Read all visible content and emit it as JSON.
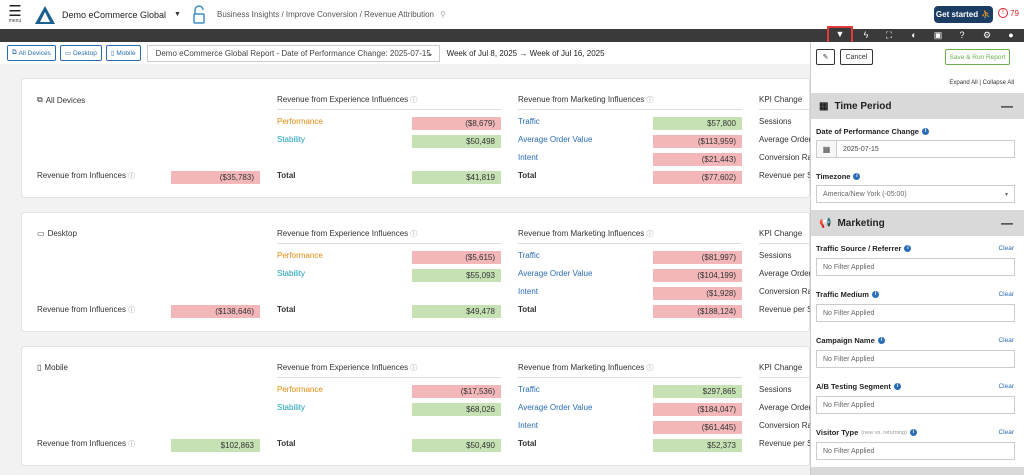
{
  "topbar": {
    "menu_label": "menu",
    "brand": "Demo eCommerce Global",
    "breadcrumb": "Business Insights / Improve Conversion / Revenue Attribution",
    "get_started": "Get started",
    "alert_count": "79"
  },
  "filterbar": {
    "all_devices": "All Devices",
    "desktop": "Desktop",
    "mobile": "Mobile",
    "report": "Demo eCommerce Global Report - Date of Performance Change: 2025-07-15",
    "weeks": "Week of Jul 8, 2025 → Week of Jul 16, 2025"
  },
  "cards": [
    {
      "title": "All Devices",
      "exp_header": "Revenue from Experience Influences",
      "mkt_header": "Revenue from Marketing Influences",
      "kpi_header": "KPI Change",
      "exp_rows": [
        {
          "label": "Performance",
          "value": "($8,679)"
        },
        {
          "label": "Stability",
          "value": "$50,498"
        }
      ],
      "exp_total_label": "Total",
      "exp_total": "$41,819",
      "mkt_rows": [
        {
          "label": "Traffic",
          "value": "$57,800"
        },
        {
          "label": "Average Order Value",
          "value": "($113,959)"
        },
        {
          "label": "Intent",
          "value": "($21,443)"
        }
      ],
      "mkt_total_label": "Total",
      "mkt_total": "($77,602)",
      "kpis": [
        "Sessions",
        "Average Order V",
        "Conversion Rate",
        "Revenue per Ses"
      ],
      "rfi_label": "Revenue from Influences",
      "rfi_value": "($35,783)"
    },
    {
      "title": "Desktop",
      "exp_header": "Revenue from Experience Influences",
      "mkt_header": "Revenue from Marketing Influences",
      "kpi_header": "KPI Change",
      "exp_rows": [
        {
          "label": "Performance",
          "value": "($5,615)"
        },
        {
          "label": "Stability",
          "value": "$55,093"
        }
      ],
      "exp_total_label": "Total",
      "exp_total": "$49,478",
      "mkt_rows": [
        {
          "label": "Traffic",
          "value": "($81,997)"
        },
        {
          "label": "Average Order Value",
          "value": "($104,199)"
        },
        {
          "label": "Intent",
          "value": "($1,928)"
        }
      ],
      "mkt_total_label": "Total",
      "mkt_total": "($188,124)",
      "kpis": [
        "Sessions",
        "Average Order V",
        "Conversion Rate",
        "Revenue per Ses"
      ],
      "rfi_label": "Revenue from Influences",
      "rfi_value": "($138,646)"
    },
    {
      "title": "Mobile",
      "exp_header": "Revenue from Experience Influences",
      "mkt_header": "Revenue from Marketing Influences",
      "kpi_header": "KPI Change",
      "exp_rows": [
        {
          "label": "Performance",
          "value": "($17,536)"
        },
        {
          "label": "Stability",
          "value": "$68,026"
        }
      ],
      "exp_total_label": "Total",
      "exp_total": "$50,490",
      "mkt_rows": [
        {
          "label": "Traffic",
          "value": "$297,865"
        },
        {
          "label": "Average Order Value",
          "value": "($184,047)"
        },
        {
          "label": "Intent",
          "value": "($61,445)"
        }
      ],
      "mkt_total_label": "Total",
      "mkt_total": "$52,373",
      "kpis": [
        "Sessions",
        "Average Order V",
        "Conversion Rate",
        "Revenue per Ses"
      ],
      "rfi_label": "Revenue from Influences",
      "rfi_value": "$102,863"
    }
  ],
  "panel": {
    "cancel": "Cancel",
    "save_run": "Save & Run Report",
    "expand_collapse": "Expand All | Collapse All",
    "time_period": "Time Period",
    "date_label": "Date of Performance Change",
    "date_value": "2025-07-15",
    "timezone_label": "Timezone",
    "timezone_value": "America/New York (-05:00)",
    "marketing": "Marketing",
    "clear": "Clear",
    "no_filter": "No Filter Applied",
    "filters": [
      {
        "label": "Traffic Source / Referrer",
        "note": ""
      },
      {
        "label": "Traffic Medium",
        "note": ""
      },
      {
        "label": "Campaign Name",
        "note": ""
      },
      {
        "label": "A/B Testing Segment",
        "note": ""
      },
      {
        "label": "Visitor Type",
        "note": "(new vs. returning)"
      }
    ]
  },
  "colors": {
    "negative": "#f3b7b9",
    "positive": "#c6e2b4",
    "brand": "#1b3d63",
    "filter_highlight": "#e0393e"
  }
}
